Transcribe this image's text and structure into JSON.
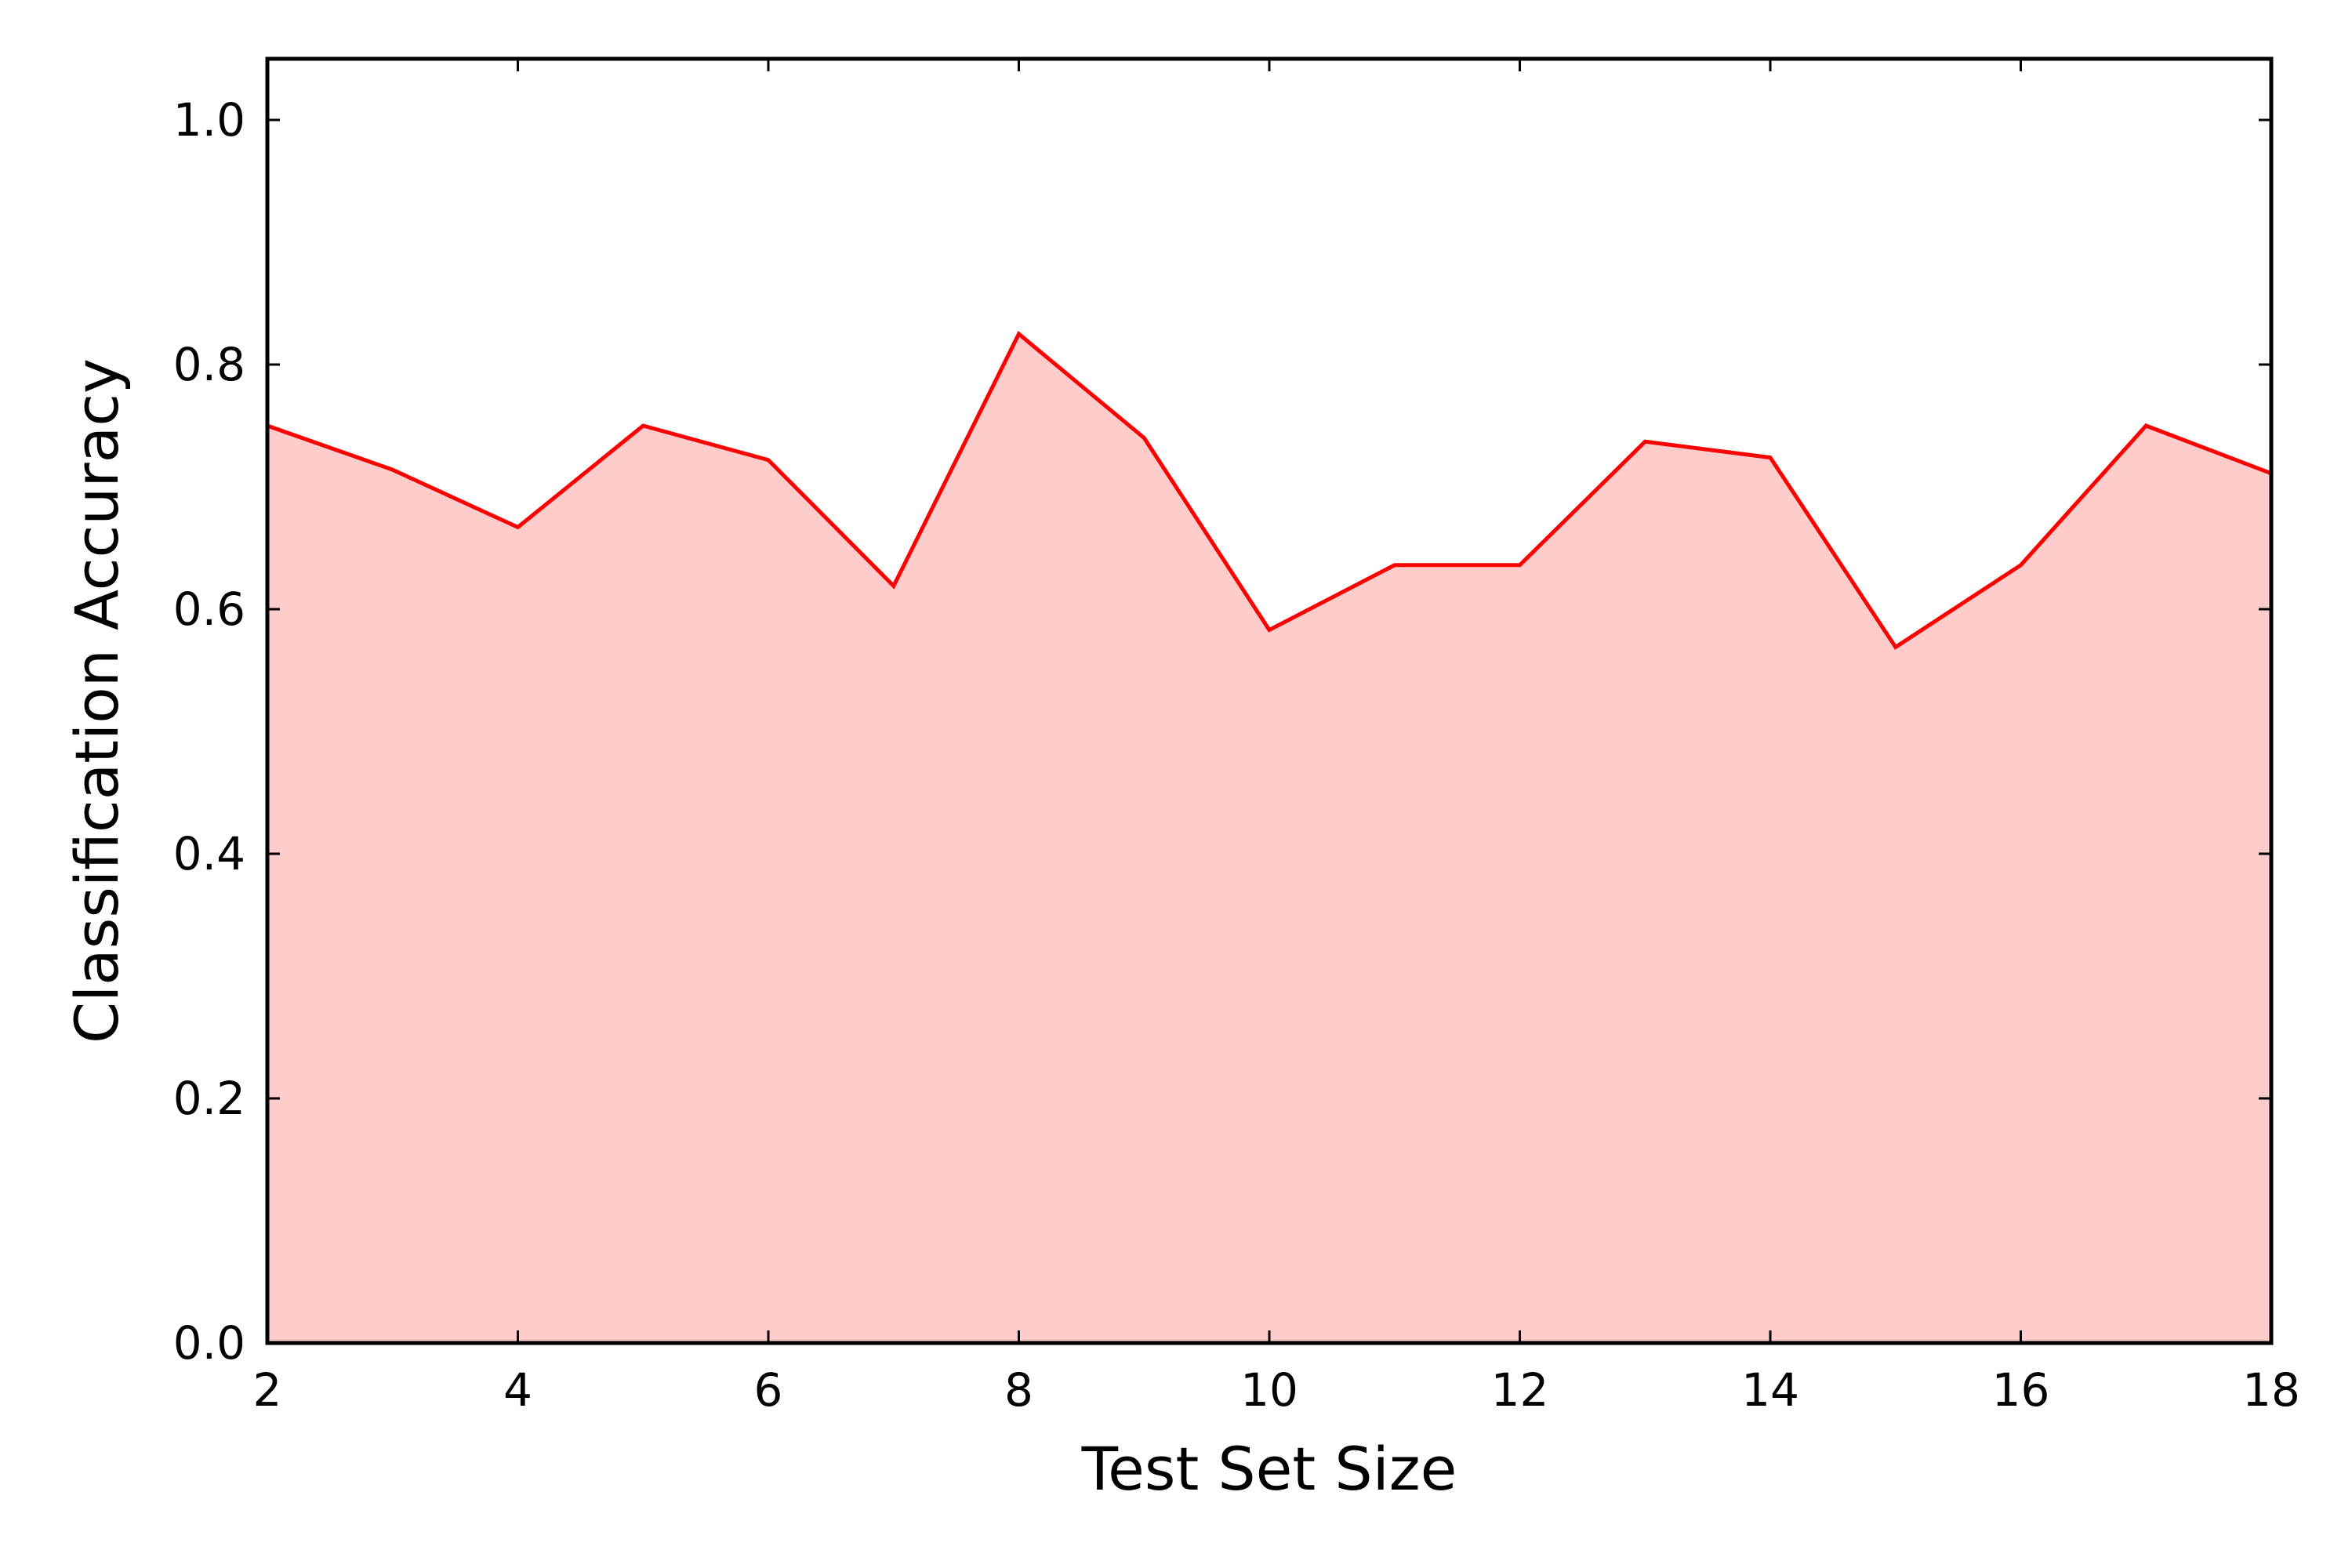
{
  "chart_data": {
    "type": "area",
    "xlabel": "Test Set Size",
    "ylabel": "Classification Accuracy",
    "xlim": [
      2,
      18
    ],
    "ylim": [
      0.0,
      1.05
    ],
    "xticks": [
      "2",
      "4",
      "6",
      "8",
      "10",
      "12",
      "14",
      "16",
      "18"
    ],
    "yticks": [
      "0.0",
      "0.2",
      "0.4",
      "0.6",
      "0.8",
      "1.0"
    ],
    "grid": false,
    "series": [
      {
        "x": [
          2,
          3,
          4,
          5,
          6,
          7,
          8,
          9,
          10,
          11,
          12,
          13,
          14,
          15,
          16,
          17,
          18
        ],
        "y": [
          0.75,
          0.714,
          0.667,
          0.75,
          0.722,
          0.619,
          0.825,
          0.74,
          0.583,
          0.636,
          0.636,
          0.737,
          0.724,
          0.569,
          0.636,
          0.75,
          0.711
        ],
        "line_color": "#ff0000",
        "fill_color": "#ffcccc"
      }
    ]
  }
}
